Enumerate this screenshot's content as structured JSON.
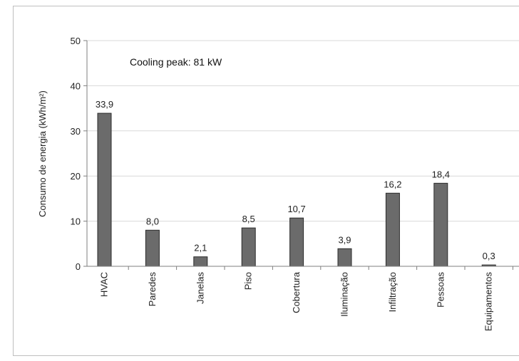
{
  "chart_data": {
    "type": "bar",
    "ylabel": "Consumo de energia (kWh/m²)",
    "annotation": "Cooling peak: 81 kW",
    "ylim": [
      0,
      50
    ],
    "yticks": [
      "0",
      "10",
      "20",
      "30",
      "40",
      "50"
    ],
    "categories": [
      "HVAC",
      "Paredes",
      "Janelas",
      "Piso",
      "Cobertura",
      "Iluminação",
      "Infiltração",
      "Pessoas",
      "Equipamentos"
    ],
    "values": [
      33.9,
      8.0,
      2.1,
      8.5,
      10.7,
      3.9,
      16.2,
      18.4,
      0.3
    ],
    "value_labels": [
      "33,9",
      "8,0",
      "2,1",
      "8,5",
      "10,7",
      "3,9",
      "16,2",
      "18,4",
      "0,3"
    ],
    "grid": true,
    "colors": {
      "bar": "#6b6b6b",
      "bar_edge": "#2b2b2b",
      "grid": "#d9d9d9",
      "axis": "#7f7f7f"
    }
  }
}
